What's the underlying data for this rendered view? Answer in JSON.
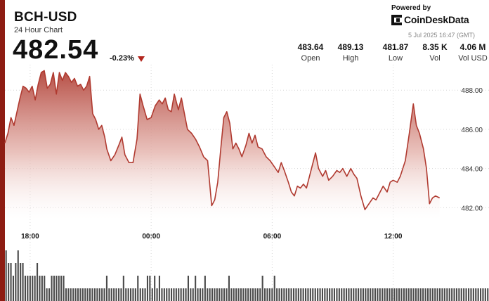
{
  "header": {
    "title": "BCH-USD",
    "subtitle": "24 Hour Chart",
    "price": "482.54",
    "change": "-0.23%",
    "powered_by": "Powered by",
    "brand": "CoinDeskData",
    "timestamp": "5 Jul 2025 16:47 (GMT)"
  },
  "stats": [
    {
      "value": "483.64",
      "label": "Open"
    },
    {
      "value": "489.13",
      "label": "High"
    },
    {
      "value": "481.87",
      "label": "Low"
    },
    {
      "value": "8.35 K",
      "label": "Vol"
    },
    {
      "value": "4.06 M",
      "label": "Vol USD"
    }
  ],
  "colors": {
    "accent": "#8e1d13",
    "line": "#b03a30",
    "down": "#b3261e",
    "volume": "#4a4a4a"
  },
  "chart_data": {
    "type": "area",
    "title": "",
    "xlabel": "",
    "ylabel": "",
    "ylim": [
      481.4,
      489.3
    ],
    "yticks": [
      488,
      486,
      484,
      482
    ],
    "ytick_labels": [
      "488.00",
      "486.00",
      "484.00",
      "482.00"
    ],
    "xlim": [
      16.75,
      40.75
    ],
    "xticks": [
      18,
      24,
      30,
      36
    ],
    "xtick_labels": [
      "18:00",
      "00:00",
      "06:00",
      "12:00"
    ],
    "grid": true,
    "series": [
      {
        "values": [
          [
            16.75,
            485.3
          ],
          [
            16.9,
            485.8
          ],
          [
            17.05,
            486.6
          ],
          [
            17.2,
            486.2
          ],
          [
            17.35,
            486.9
          ],
          [
            17.5,
            487.6
          ],
          [
            17.65,
            488.2
          ],
          [
            17.8,
            488.1
          ],
          [
            17.95,
            487.9
          ],
          [
            18.1,
            488.2
          ],
          [
            18.25,
            487.5
          ],
          [
            18.4,
            488.3
          ],
          [
            18.55,
            488.9
          ],
          [
            18.7,
            489.0
          ],
          [
            18.85,
            488.1
          ],
          [
            19.0,
            488.3
          ],
          [
            19.15,
            488.9
          ],
          [
            19.3,
            487.8
          ],
          [
            19.45,
            488.9
          ],
          [
            19.6,
            488.5
          ],
          [
            19.75,
            488.9
          ],
          [
            19.9,
            488.7
          ],
          [
            20.05,
            488.4
          ],
          [
            20.2,
            488.6
          ],
          [
            20.35,
            488.2
          ],
          [
            20.5,
            488.3
          ],
          [
            20.65,
            488.0
          ],
          [
            20.8,
            488.2
          ],
          [
            20.95,
            488.7
          ],
          [
            21.1,
            486.8
          ],
          [
            21.25,
            486.5
          ],
          [
            21.4,
            486.0
          ],
          [
            21.55,
            486.2
          ],
          [
            21.7,
            485.6
          ],
          [
            21.8,
            485.0
          ],
          [
            22.0,
            484.4
          ],
          [
            22.2,
            484.7
          ],
          [
            22.4,
            485.2
          ],
          [
            22.55,
            485.6
          ],
          [
            22.7,
            484.7
          ],
          [
            22.9,
            484.3
          ],
          [
            23.1,
            484.3
          ],
          [
            23.3,
            485.5
          ],
          [
            23.45,
            487.8
          ],
          [
            23.6,
            487.2
          ],
          [
            23.8,
            486.5
          ],
          [
            24.0,
            486.6
          ],
          [
            24.2,
            487.2
          ],
          [
            24.4,
            487.5
          ],
          [
            24.55,
            487.3
          ],
          [
            24.7,
            487.6
          ],
          [
            24.85,
            487.0
          ],
          [
            25.0,
            486.9
          ],
          [
            25.15,
            487.8
          ],
          [
            25.35,
            487.0
          ],
          [
            25.5,
            487.6
          ],
          [
            25.65,
            486.8
          ],
          [
            25.8,
            486.0
          ],
          [
            26.0,
            485.8
          ],
          [
            26.2,
            485.5
          ],
          [
            26.4,
            485.1
          ],
          [
            26.6,
            484.6
          ],
          [
            26.8,
            484.4
          ],
          [
            27.0,
            482.1
          ],
          [
            27.15,
            482.4
          ],
          [
            27.3,
            483.3
          ],
          [
            27.45,
            485.0
          ],
          [
            27.6,
            486.6
          ],
          [
            27.75,
            486.9
          ],
          [
            27.9,
            486.3
          ],
          [
            28.05,
            485.0
          ],
          [
            28.2,
            485.3
          ],
          [
            28.35,
            485.0
          ],
          [
            28.5,
            484.6
          ],
          [
            28.7,
            485.2
          ],
          [
            28.85,
            485.8
          ],
          [
            29.0,
            485.3
          ],
          [
            29.15,
            485.7
          ],
          [
            29.3,
            485.1
          ],
          [
            29.5,
            485.0
          ],
          [
            29.7,
            484.6
          ],
          [
            29.9,
            484.4
          ],
          [
            30.1,
            484.1
          ],
          [
            30.3,
            483.8
          ],
          [
            30.45,
            484.3
          ],
          [
            30.6,
            483.9
          ],
          [
            30.8,
            483.3
          ],
          [
            30.95,
            482.8
          ],
          [
            31.1,
            482.6
          ],
          [
            31.25,
            483.1
          ],
          [
            31.4,
            483.0
          ],
          [
            31.55,
            483.2
          ],
          [
            31.7,
            483.0
          ],
          [
            31.85,
            483.6
          ],
          [
            32.0,
            484.2
          ],
          [
            32.15,
            484.8
          ],
          [
            32.3,
            484.0
          ],
          [
            32.5,
            483.6
          ],
          [
            32.65,
            483.9
          ],
          [
            32.8,
            483.4
          ],
          [
            33.0,
            483.6
          ],
          [
            33.2,
            483.9
          ],
          [
            33.35,
            483.8
          ],
          [
            33.5,
            484.0
          ],
          [
            33.7,
            483.6
          ],
          [
            33.9,
            484.0
          ],
          [
            34.05,
            483.7
          ],
          [
            34.2,
            483.5
          ],
          [
            34.4,
            482.6
          ],
          [
            34.6,
            481.9
          ],
          [
            34.8,
            482.2
          ],
          [
            35.0,
            482.5
          ],
          [
            35.15,
            482.4
          ],
          [
            35.35,
            482.8
          ],
          [
            35.5,
            483.1
          ],
          [
            35.7,
            482.8
          ],
          [
            35.85,
            483.3
          ],
          [
            36.0,
            483.4
          ],
          [
            36.2,
            483.3
          ],
          [
            36.35,
            483.6
          ],
          [
            36.6,
            484.4
          ],
          [
            36.8,
            485.8
          ],
          [
            37.0,
            487.3
          ],
          [
            37.15,
            486.2
          ],
          [
            37.3,
            485.8
          ],
          [
            37.5,
            485.0
          ],
          [
            37.65,
            484.0
          ],
          [
            37.8,
            482.2
          ],
          [
            37.95,
            482.5
          ],
          [
            38.1,
            482.6
          ],
          [
            38.3,
            482.5
          ]
        ]
      }
    ],
    "volume": [
      4,
      3,
      3,
      2,
      3,
      4,
      3,
      3,
      2,
      2,
      2,
      2,
      2,
      3,
      2,
      2,
      2,
      1,
      1,
      2,
      2,
      2,
      2,
      2,
      2,
      1,
      1,
      1,
      1,
      1,
      1,
      1,
      1,
      1,
      1,
      1,
      1,
      1,
      1,
      1,
      1,
      1,
      2,
      1,
      1,
      1,
      1,
      1,
      1,
      2,
      1,
      1,
      1,
      1,
      1,
      2,
      1,
      1,
      1,
      2,
      2,
      1,
      2,
      1,
      2,
      1,
      1,
      1,
      1,
      1,
      1,
      1,
      1,
      1,
      1,
      1,
      2,
      1,
      1,
      2,
      1,
      1,
      1,
      2,
      1,
      1,
      1,
      1,
      1,
      1,
      1,
      1,
      1,
      2,
      1,
      1,
      1,
      1,
      1,
      1,
      1,
      1,
      1,
      1,
      1,
      1,
      1,
      2,
      1,
      1,
      1,
      1,
      2,
      1,
      1,
      1,
      1,
      1,
      1,
      1,
      1,
      1,
      1,
      1,
      1,
      1,
      1,
      1,
      1,
      1,
      1,
      1,
      1,
      1,
      1,
      1,
      1,
      1,
      1,
      1,
      1,
      1,
      1,
      1,
      1,
      1,
      1,
      1,
      1,
      1,
      1,
      1,
      1,
      1,
      1,
      1,
      1,
      1,
      1,
      1,
      1,
      1,
      1,
      1,
      1,
      1,
      1,
      1,
      1,
      1,
      1,
      1,
      1,
      1,
      1,
      1,
      1,
      1,
      1,
      1,
      1,
      1,
      1,
      1,
      1,
      1,
      1,
      1,
      1,
      1,
      1,
      1,
      1,
      1,
      1,
      1,
      1,
      1,
      1,
      1,
      1,
      1
    ]
  }
}
